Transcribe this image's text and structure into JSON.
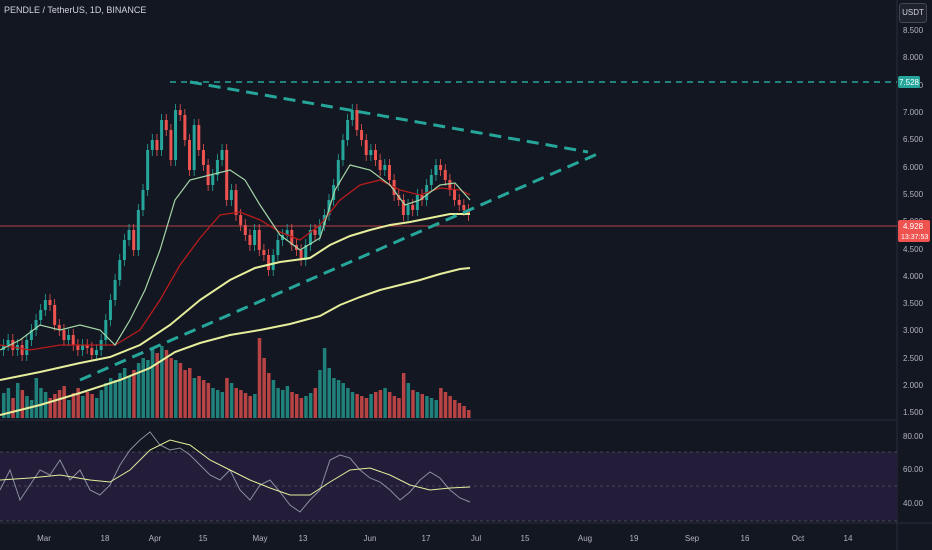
{
  "header": {
    "title": "PENDLE / TetherUS, 1D, BINANCE",
    "currency": "USDT"
  },
  "price_axis": {
    "ticks": [
      "8.500",
      "8.000",
      "7.500",
      "7.000",
      "6.500",
      "6.000",
      "5.500",
      "5.000",
      "4.500",
      "4.000",
      "3.500",
      "3.000",
      "2.500",
      "2.000",
      "1.500"
    ],
    "resistance_label": "7.528",
    "last_price": "4.928",
    "countdown": "13:37:53"
  },
  "indicator_axis": {
    "ticks": [
      "80.00",
      "60.00",
      "40.00"
    ]
  },
  "time_axis": {
    "ticks": [
      "Mar",
      "18",
      "Apr",
      "15",
      "May",
      "13",
      "Jun",
      "17",
      "Jul",
      "15",
      "Aug",
      "19",
      "Sep",
      "16",
      "Oct",
      "14"
    ]
  },
  "colors": {
    "background": "#131722",
    "up": "#26a69a",
    "down": "#ef5350",
    "trendline": "#26a69a",
    "ema_fast": "#a5d6a7",
    "ema_mid": "#b71c1c",
    "ema_slow": "#e6ee9c",
    "rsi": "#9598a1",
    "rsi_ma": "#e6ee9c",
    "rsi_band": "#2a1f46"
  }
}
